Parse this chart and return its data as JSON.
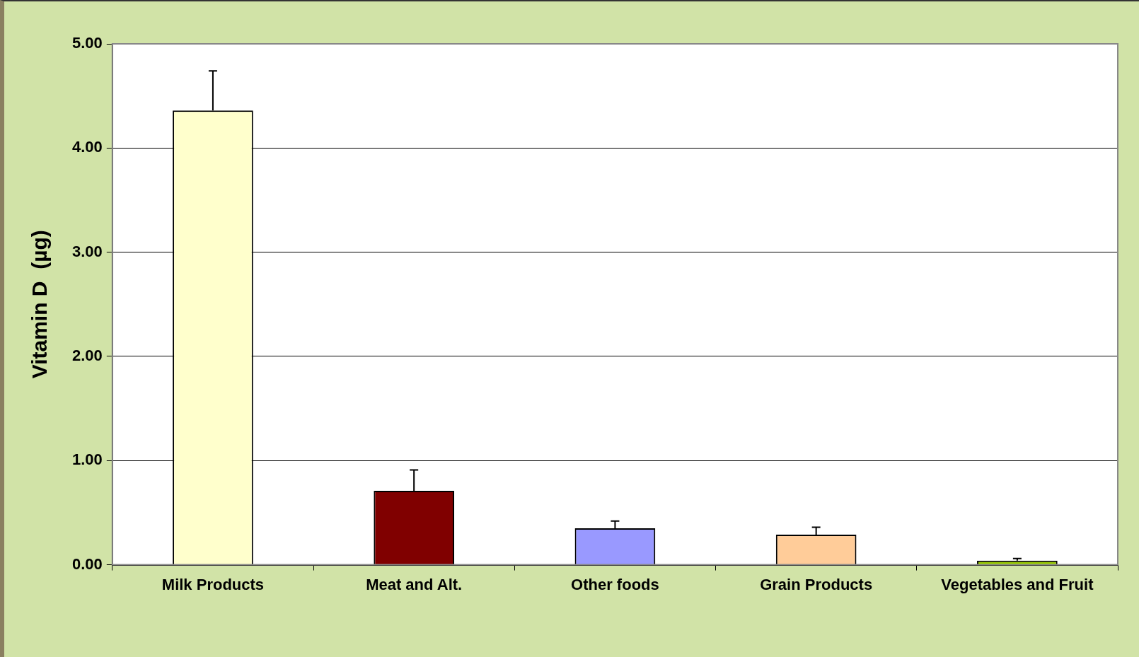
{
  "chart_data": {
    "type": "bar",
    "ylabel": "Vitamin D  (µg)",
    "categories": [
      "Milk Products",
      "Meat and Alt.",
      "Other foods",
      "Grain Products",
      "Vegetables and Fruit"
    ],
    "values": [
      4.36,
      0.71,
      0.35,
      0.29,
      0.04
    ],
    "colors": [
      "#ffffcc",
      "#800000",
      "#9999ff",
      "#ffcc99",
      "#99cc00"
    ],
    "errors": [
      [
        4.36,
        4.74
      ],
      [
        0.71,
        0.91
      ],
      [
        0.35,
        0.42
      ],
      [
        0.29,
        0.36
      ],
      [
        0.04,
        0.06
      ]
    ],
    "ylim": [
      0,
      5
    ],
    "yticks": [
      {
        "value": 0,
        "label": "0.00"
      },
      {
        "value": 1,
        "label": "1.00"
      },
      {
        "value": 2,
        "label": "2.00"
      },
      {
        "value": 3,
        "label": "3.00"
      },
      {
        "value": 4,
        "label": "4.00"
      },
      {
        "value": 5,
        "label": "5.00"
      }
    ],
    "grid": "y",
    "legend": false
  }
}
